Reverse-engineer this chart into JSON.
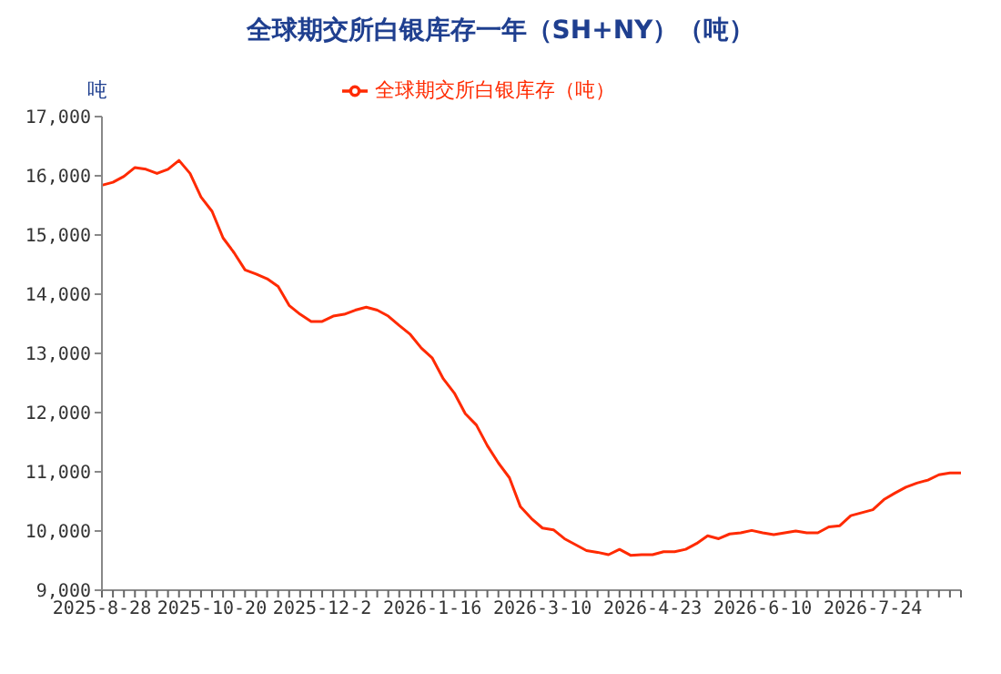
{
  "chart_data": {
    "type": "line",
    "title": "全球期交所白银库存一年（SH+NY）（吨）",
    "ylabel": "吨",
    "categories": [
      "2025-8-28",
      null,
      null,
      null,
      null,
      null,
      null,
      null,
      null,
      null,
      "2025-10-20",
      null,
      null,
      null,
      null,
      null,
      null,
      null,
      null,
      null,
      "2025-12-2",
      null,
      null,
      null,
      null,
      null,
      null,
      null,
      null,
      null,
      "2026-1-16",
      null,
      null,
      null,
      null,
      null,
      null,
      null,
      null,
      null,
      "2026-3-10",
      null,
      null,
      null,
      null,
      null,
      null,
      null,
      null,
      null,
      "2026-4-23",
      null,
      null,
      null,
      null,
      null,
      null,
      null,
      null,
      null,
      "2026-6-10",
      null,
      null,
      null,
      null,
      null,
      null,
      null,
      null,
      null,
      "2026-7-24",
      null,
      null,
      null,
      null,
      null,
      null,
      null,
      null
    ],
    "series": [
      {
        "name": "全球期交所白银库存（吨）",
        "color": "#ff2a00",
        "values": [
          15840,
          15890,
          15990,
          16140,
          16110,
          16040,
          16110,
          16260,
          16040,
          15640,
          15400,
          14950,
          14700,
          14410,
          14340,
          14260,
          14130,
          13810,
          13660,
          13540,
          13540,
          13630,
          13660,
          13730,
          13780,
          13730,
          13630,
          13470,
          13320,
          13090,
          12920,
          12570,
          12330,
          11980,
          11790,
          11440,
          11150,
          10900,
          10410,
          10210,
          10050,
          10020,
          9870,
          9770,
          9670,
          9640,
          9600,
          9690,
          9590,
          9600,
          9600,
          9650,
          9650,
          9690,
          9790,
          9920,
          9870,
          9950,
          9970,
          10010,
          9970,
          9940,
          9970,
          10000,
          9970,
          9970,
          10070,
          10090,
          10260,
          10310,
          10360,
          10530,
          10640,
          10740,
          10810,
          10860,
          10950,
          10980,
          10980
        ]
      }
    ],
    "ylim": [
      9000,
      17000
    ],
    "yticks": [
      {
        "value": 9000,
        "label": "9,000"
      },
      {
        "value": 10000,
        "label": "10,000"
      },
      {
        "value": 11000,
        "label": "11,000"
      },
      {
        "value": 12000,
        "label": "12,000"
      },
      {
        "value": 13000,
        "label": "13,000"
      },
      {
        "value": 14000,
        "label": "14,000"
      },
      {
        "value": 15000,
        "label": "15,000"
      },
      {
        "value": 16000,
        "label": "16,000"
      },
      {
        "value": 17000,
        "label": "17,000"
      }
    ],
    "legend": "top",
    "marker": "none",
    "line_style": "solid"
  }
}
